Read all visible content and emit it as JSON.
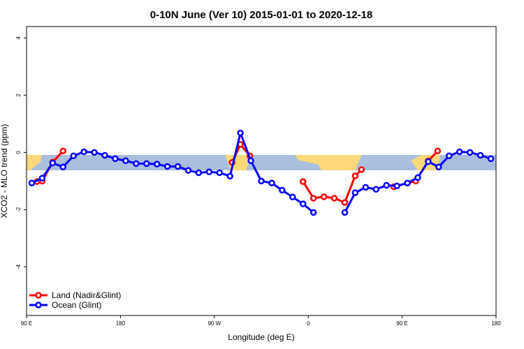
{
  "chart_data": {
    "type": "line",
    "title": "0-10N June (Ver 10)   2015-01-01 to 2020-12-18",
    "x_label": "Longitude (deg E)",
    "y_label": "XCO2 - MLO trend (ppm)",
    "xlim": [
      90,
      540
    ],
    "ylim": [
      -5.7,
      4.4
    ],
    "xticks": [
      {
        "value": 90,
        "label": "90 E"
      },
      {
        "value": 180,
        "label": "180"
      },
      {
        "value": 270,
        "label": "90 W"
      },
      {
        "value": 360,
        "label": "0"
      },
      {
        "value": 450,
        "label": "90 E"
      },
      {
        "value": 540,
        "label": "180"
      }
    ],
    "yticks": [
      -4,
      -2,
      0,
      2,
      4
    ],
    "legend": "bottom-left",
    "series": [
      {
        "name": "Land (Nadir&Glint)",
        "color": "#ff0000",
        "x": [
          100,
          105,
          115,
          125,
          205,
          287,
          295,
          304,
          330,
          355,
          365,
          375,
          385,
          395,
          405,
          411,
          430,
          442,
          463,
          475,
          484
        ],
        "values": [
          -1.02,
          -1.0,
          -0.34,
          0.05,
          null,
          -0.35,
          0.28,
          -0.12,
          null,
          -1.02,
          -1.6,
          -1.55,
          -1.6,
          -1.75,
          -0.82,
          -0.6,
          null,
          -1.2,
          -1.0,
          -0.3,
          0.05
        ]
      },
      {
        "name": "Ocean (Glint)",
        "color": "#0000ff",
        "x": [
          95,
          105,
          115,
          125,
          135,
          145,
          155,
          165,
          175,
          185,
          195,
          205,
          215,
          225,
          235,
          245,
          255,
          265,
          275,
          285,
          295,
          305,
          315,
          325,
          335,
          345,
          355,
          365,
          375,
          385,
          395,
          405,
          415,
          425,
          435,
          445,
          455,
          465,
          475,
          485,
          495,
          505,
          515,
          525,
          535
        ],
        "values": [
          -1.07,
          -0.9,
          -0.37,
          -0.51,
          -0.12,
          0.02,
          0.0,
          -0.1,
          -0.22,
          -0.29,
          -0.39,
          -0.39,
          -0.41,
          -0.49,
          -0.49,
          -0.63,
          -0.71,
          -0.68,
          -0.71,
          -0.83,
          0.68,
          -0.29,
          -1.0,
          -1.07,
          -1.32,
          -1.56,
          -1.8,
          -2.1,
          null,
          null,
          -2.1,
          -1.41,
          -1.22,
          -1.29,
          -1.15,
          -1.17,
          -1.07,
          -0.88,
          -0.32,
          -0.51,
          -0.12,
          0.02,
          0.0,
          -0.1,
          -0.22
        ]
      }
    ]
  }
}
